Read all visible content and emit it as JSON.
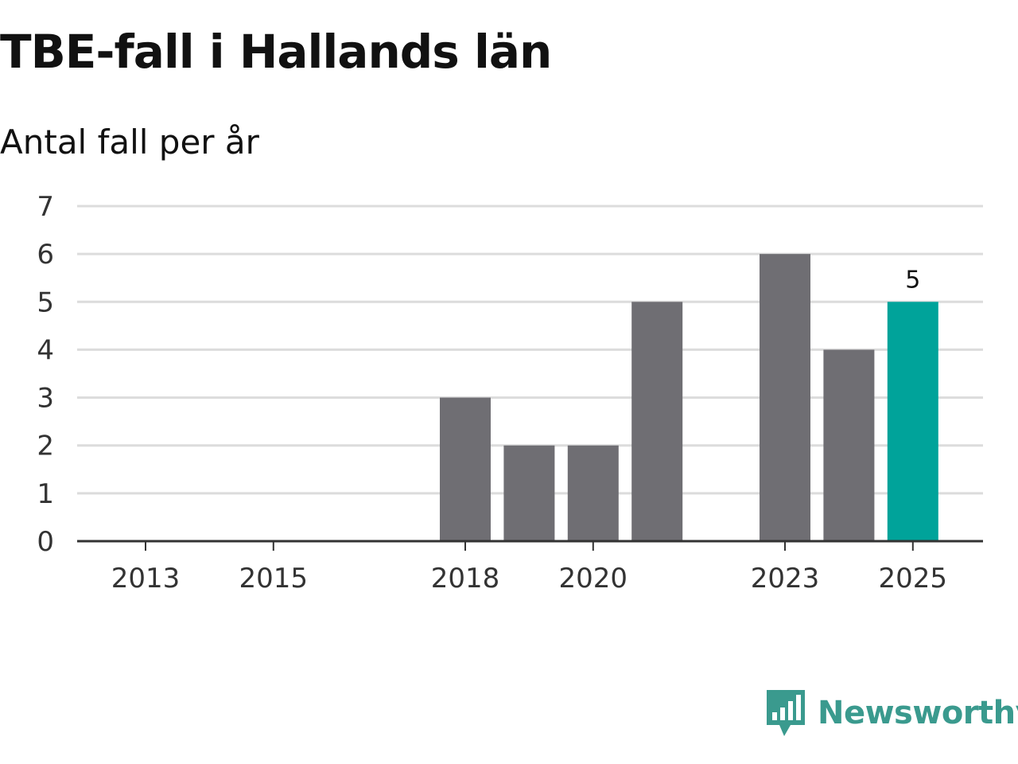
{
  "chart_data": {
    "type": "bar",
    "title": "TBE-fall i Hallands län",
    "subtitle": "Antal fall per år",
    "x": [
      2013,
      2014,
      2015,
      2016,
      2017,
      2018,
      2019,
      2020,
      2021,
      2022,
      2023,
      2024,
      2025
    ],
    "values": [
      0,
      0,
      0,
      0,
      0,
      3,
      2,
      2,
      5,
      0,
      6,
      4,
      5
    ],
    "x_ticks": [
      "2013",
      "2015",
      "2018",
      "2020",
      "2023",
      "2025"
    ],
    "y_ticks": [
      "0",
      "1",
      "2",
      "3",
      "4",
      "5",
      "6",
      "7"
    ],
    "ylim": [
      0,
      7
    ],
    "grid": true,
    "highlight": {
      "x": 2025,
      "value_label": "5"
    },
    "colors": {
      "bar": "#6f6e73",
      "highlight": "#00a39a",
      "grid": "#dcdcdc",
      "axis": "#333333"
    }
  },
  "branding": {
    "logo_text": "Newsworthy",
    "logo_icon": "newsworthy-bar-chart-icon",
    "logo_color": "#3a9a8e"
  }
}
